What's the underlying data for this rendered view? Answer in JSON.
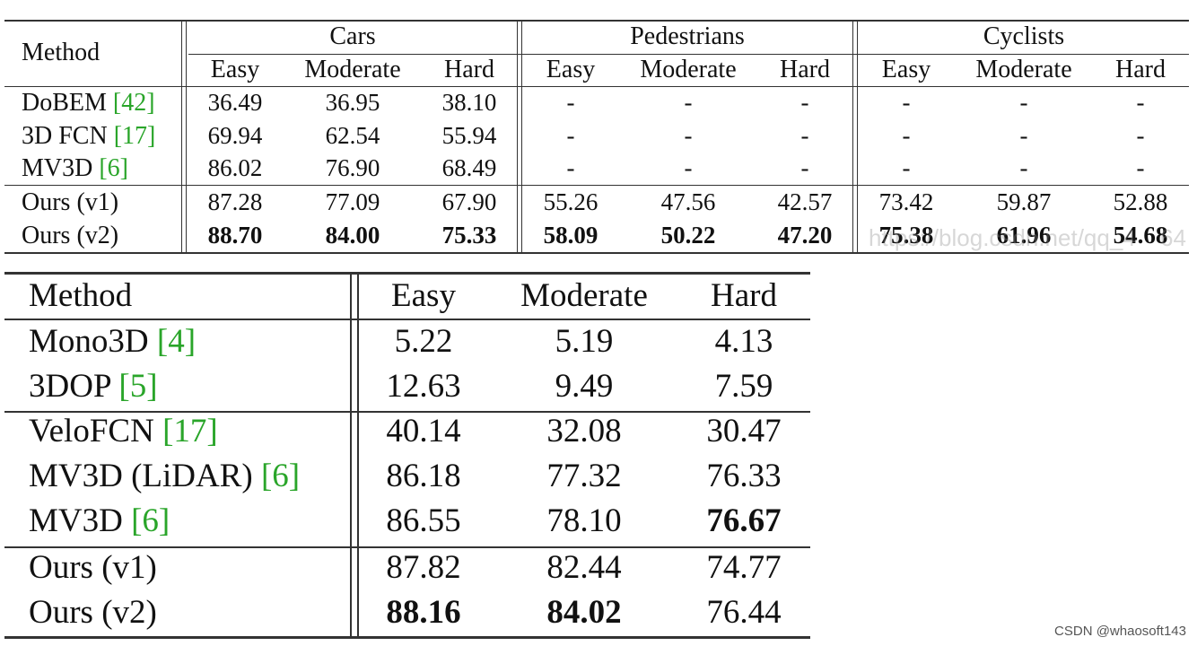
{
  "table1": {
    "method_header": "Method",
    "groups": [
      "Cars",
      "Pedestrians",
      "Cyclists"
    ],
    "subheaders": [
      "Easy",
      "Moderate",
      "Hard",
      "Easy",
      "Moderate",
      "Hard",
      "Easy",
      "Moderate",
      "Hard"
    ],
    "rows": [
      {
        "name": "DoBEM ",
        "ref": "[42]",
        "vals": [
          "36.49",
          "36.95",
          "38.10",
          "-",
          "-",
          "-",
          "-",
          "-",
          "-"
        ]
      },
      {
        "name": "3D FCN ",
        "ref": "[17]",
        "vals": [
          "69.94",
          "62.54",
          "55.94",
          "-",
          "-",
          "-",
          "-",
          "-",
          "-"
        ]
      },
      {
        "name": "MV3D ",
        "ref": "[6]",
        "vals": [
          "86.02",
          "76.90",
          "68.49",
          "-",
          "-",
          "-",
          "-",
          "-",
          "-"
        ]
      },
      {
        "name": "Ours (v1)",
        "ref": "",
        "vals": [
          "87.28",
          "77.09",
          "67.90",
          "55.26",
          "47.56",
          "42.57",
          "73.42",
          "59.87",
          "52.88"
        ]
      },
      {
        "name": "Ours (v2)",
        "ref": "",
        "vals": [
          "88.70",
          "84.00",
          "75.33",
          "58.09",
          "50.22",
          "47.20",
          "75.38",
          "61.96",
          "54.68"
        ]
      }
    ]
  },
  "table2": {
    "method_header": "Method",
    "subheaders": [
      "Easy",
      "Moderate",
      "Hard"
    ],
    "rows": [
      {
        "name": "Mono3D ",
        "ref": "[4]",
        "vals": [
          "5.22",
          "5.19",
          "4.13"
        ]
      },
      {
        "name": "3DOP ",
        "ref": "[5]",
        "vals": [
          "12.63",
          "9.49",
          "7.59"
        ]
      },
      {
        "name": "VeloFCN ",
        "ref": "[17]",
        "vals": [
          "40.14",
          "32.08",
          "30.47"
        ]
      },
      {
        "name": "MV3D (LiDAR) ",
        "ref": "[6]",
        "vals": [
          "86.18",
          "77.32",
          "76.33"
        ]
      },
      {
        "name": "MV3D ",
        "ref": "[6]",
        "vals": [
          "86.55",
          "78.10",
          "76.67"
        ]
      },
      {
        "name": "Ours (v1)",
        "ref": "",
        "vals": [
          "87.82",
          "82.44",
          "74.77"
        ]
      },
      {
        "name": "Ours (v2)",
        "ref": "",
        "vals": [
          "88.16",
          "84.02",
          "76.44"
        ]
      }
    ]
  },
  "watermark": "https://blog.csdn.net/qq_4",
  "watermark_suffix": "64",
  "footer": "CSDN @whaosoft143"
}
